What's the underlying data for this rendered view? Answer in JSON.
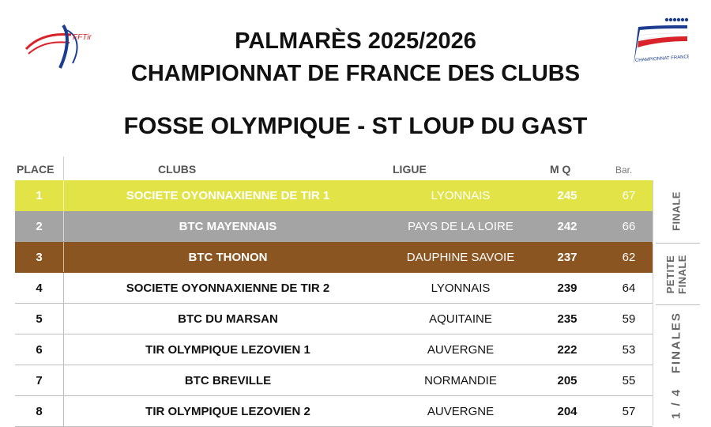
{
  "header": {
    "line1": "PALMARÈS 2025/2026",
    "line2": "CHAMPIONNAT DE FRANCE DES CLUBS",
    "line3": "FOSSE OLYMPIQUE - ST LOUP DU GAST"
  },
  "logos": {
    "left_text": "FFTir",
    "right_text": "CHAMPIONNAT FRANCE CLUBS"
  },
  "columns": {
    "place": "PLACE",
    "clubs": "CLUBS",
    "ligue": "LIGUE",
    "mq": "M Q",
    "bar": "Bar."
  },
  "rows": [
    {
      "place": "1",
      "club": "SOCIETE OYONNAXIENNE DE TIR 1",
      "ligue": "LYONNAIS",
      "mq": "245",
      "bar": "67",
      "medal": "gold"
    },
    {
      "place": "2",
      "club": "BTC MAYENNAIS",
      "ligue": "PAYS DE LA LOIRE",
      "mq": "242",
      "bar": "66",
      "medal": "silver"
    },
    {
      "place": "3",
      "club": "BTC THONON",
      "ligue": "DAUPHINE SAVOIE",
      "mq": "237",
      "bar": "62",
      "medal": "bronze"
    },
    {
      "place": "4",
      "club": "SOCIETE OYONNAXIENNE DE TIR 2",
      "ligue": "LYONNAIS",
      "mq": "239",
      "bar": "64",
      "medal": ""
    },
    {
      "place": "5",
      "club": "BTC DU MARSAN",
      "ligue": "AQUITAINE",
      "mq": "235",
      "bar": "59",
      "medal": ""
    },
    {
      "place": "6",
      "club": "TIR OLYMPIQUE LEZOVIEN 1",
      "ligue": "AUVERGNE",
      "mq": "222",
      "bar": "53",
      "medal": ""
    },
    {
      "place": "7",
      "club": "BTC BREVILLE",
      "ligue": "NORMANDIE",
      "mq": "205",
      "bar": "55",
      "medal": ""
    },
    {
      "place": "8",
      "club": "TIR OLYMPIQUE LEZOVIEN 2",
      "ligue": "AUVERGNE",
      "mq": "204",
      "bar": "57",
      "medal": ""
    }
  ],
  "phases": {
    "finale": "FINALE",
    "petite_finale_1": "PETITE",
    "petite_finale_2": "FINALE",
    "quarter": "1 / 4   FINALES"
  },
  "colors": {
    "gold": "#e1e346",
    "silver": "#a4a4a4",
    "bronze": "#8b5521"
  }
}
